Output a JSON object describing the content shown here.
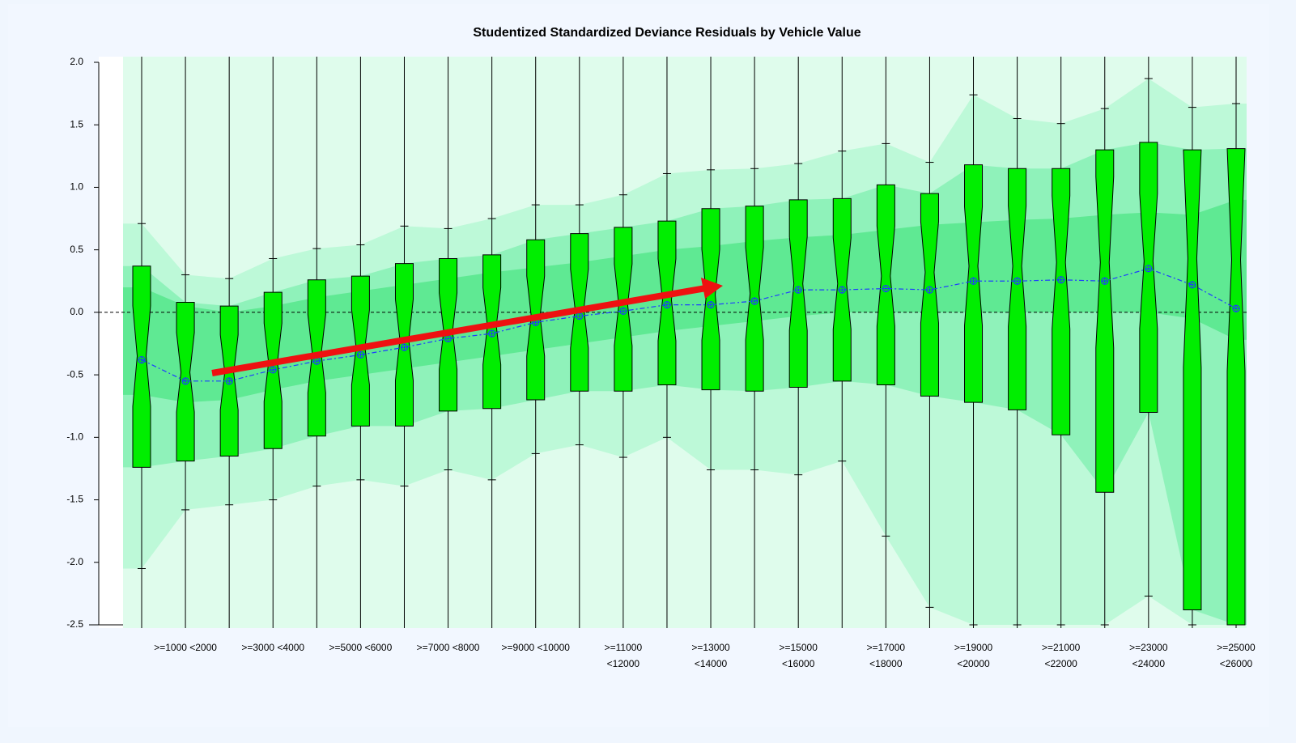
{
  "chart_data": {
    "type": "boxplot",
    "title": "Studentized Standardized Deviance Residuals by Vehicle Value",
    "categories": [
      null,
      ">=1000 <2000",
      null,
      ">=3000 <4000",
      null,
      ">=5000 <6000",
      null,
      ">=7000 <8000",
      null,
      ">=9000 <10000",
      null,
      ">=11000\n<12000",
      null,
      ">=13000\n<14000",
      null,
      ">=15000\n<16000",
      null,
      ">=17000\n<18000",
      null,
      ">=19000\n<20000",
      null,
      ">=21000\n<22000",
      null,
      ">=23000\n<24000",
      null,
      ">=25000\n<26000"
    ],
    "whisker_low": [
      -2.05,
      -1.58,
      -1.54,
      -1.5,
      -1.39,
      -1.34,
      -1.39,
      -1.26,
      -1.34,
      -1.13,
      -1.06,
      -1.16,
      -1.0,
      -1.26,
      -1.26,
      -1.3,
      -1.19,
      -1.79,
      -2.36,
      -2.5,
      -2.5,
      -2.5,
      -2.5,
      -2.27,
      -2.5,
      -2.5
    ],
    "q1": [
      -1.24,
      -1.19,
      -1.15,
      -1.09,
      -0.99,
      -0.91,
      -0.91,
      -0.79,
      -0.77,
      -0.7,
      -0.63,
      -0.63,
      -0.58,
      -0.62,
      -0.63,
      -0.6,
      -0.55,
      -0.58,
      -0.67,
      -0.72,
      -0.78,
      -0.98,
      -1.44,
      -0.8,
      -2.38,
      -2.5
    ],
    "median": [
      -0.35,
      -0.48,
      -0.48,
      -0.4,
      -0.33,
      -0.28,
      -0.22,
      -0.15,
      -0.11,
      -0.03,
      0.03,
      0.06,
      0.1,
      0.14,
      0.15,
      0.23,
      0.23,
      0.29,
      0.32,
      0.37,
      0.37,
      0.4,
      0.4,
      0.41,
      0.43,
      0.42
    ],
    "q3": [
      0.37,
      0.08,
      0.05,
      0.16,
      0.26,
      0.29,
      0.39,
      0.43,
      0.46,
      0.58,
      0.63,
      0.68,
      0.73,
      0.83,
      0.85,
      0.9,
      0.91,
      1.02,
      0.95,
      1.18,
      1.15,
      1.15,
      1.3,
      1.36,
      1.3,
      1.31
    ],
    "whisker_high": [
      0.71,
      0.3,
      0.27,
      0.43,
      0.51,
      0.54,
      0.69,
      0.67,
      0.75,
      0.86,
      0.86,
      0.94,
      1.11,
      1.14,
      1.15,
      1.19,
      1.29,
      1.35,
      1.2,
      1.74,
      1.55,
      1.51,
      1.63,
      1.87,
      1.64,
      1.67
    ],
    "mean": [
      -0.38,
      -0.55,
      -0.55,
      -0.46,
      -0.39,
      -0.34,
      -0.28,
      -0.21,
      -0.17,
      -0.08,
      -0.03,
      0.01,
      0.06,
      0.06,
      0.09,
      0.18,
      0.18,
      0.19,
      0.18,
      0.25,
      0.25,
      0.26,
      0.25,
      0.35,
      0.22,
      0.03
    ],
    "inner_band": {
      "lower": [
        -0.66,
        -0.72,
        -0.7,
        -0.62,
        -0.55,
        -0.5,
        -0.45,
        -0.4,
        -0.35,
        -0.3,
        -0.25,
        -0.2,
        -0.15,
        -0.11,
        -0.07,
        -0.03,
        0,
        0,
        0,
        0,
        0,
        0,
        0,
        0,
        -0.05,
        -0.22
      ],
      "upper": [
        0.2,
        0.05,
        0,
        0.05,
        0.12,
        0.17,
        0.22,
        0.27,
        0.32,
        0.36,
        0.4,
        0.45,
        0.5,
        0.53,
        0.57,
        0.6,
        0.62,
        0.66,
        0.7,
        0.72,
        0.74,
        0.75,
        0.78,
        0.8,
        0.78,
        0.9
      ]
    },
    "reference_line": 0,
    "ylim": [
      -2.5,
      2.0
    ],
    "yticks": [
      {
        "value": 2,
        "label": "2.0"
      },
      1.5,
      {
        "value": 1,
        "label": "1.0"
      },
      0.5,
      {
        "value": 0,
        "label": "0.0"
      },
      -0.5,
      {
        "value": -1,
        "label": "-1.0"
      },
      -1.5,
      {
        "value": -2,
        "label": "-2.0"
      },
      -2.5
    ],
    "box_color": "#00ee00",
    "mean_color": "#1f3cff",
    "band_colors": [
      "#bdf9d8",
      "#8ff2ba",
      "#5fe993"
    ],
    "plot_background": "#dffcec"
  }
}
